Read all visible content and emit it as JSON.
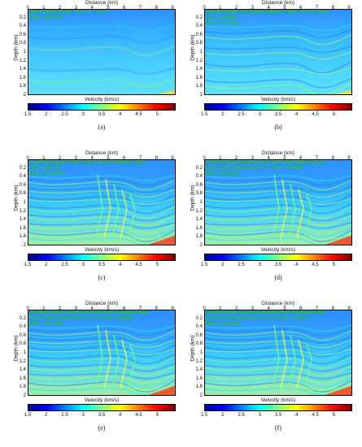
{
  "panels": [
    {
      "caption": "(a)",
      "xlabel": "Distance (km)",
      "ylabel": "Depth (km)",
      "cbar_label": "Velocity (km/s)",
      "annotation": [
        "Initial velocity model, S/N = 17.7312",
        "MSE = 69.3739"
      ]
    },
    {
      "caption": "(b)",
      "xlabel": "Distance (km)",
      "ylabel": "Depth (km)",
      "cbar_label": "Velocity (km/s)",
      "annotation": [
        "Inverted model using high-frequency data (≥ 10 Hz) only",
        "S/N = 16.9067",
        "MSE = 76.2820"
      ]
    },
    {
      "caption": "(c)",
      "xlabel": "Distance (km)",
      "ylabel": "Depth (km)",
      "cbar_label": "Velocity (km/s)",
      "annotation": [
        "Inverted velocity model using true low-frequency data",
        "S/N = 19.8743",
        "MSE = 54.2056"
      ]
    },
    {
      "caption": "(d)",
      "xlabel": "Distance (km)",
      "ylabel": "Depth (km)",
      "cbar_label": "Velocity (km/s)",
      "annotation": [
        "Inverted model using reconstructed low-frequency data",
        "by 3D CNN, kernel size 5 x 5, S/N = 18.6666",
        "MSE = 62.2913"
      ]
    },
    {
      "caption": "(e)",
      "xlabel": "Distance (km)",
      "ylabel": "Depth (km)",
      "cbar_label": "Velocity (km/s)",
      "annotation": [
        "Inverted model using reconstructed low-frequency data",
        "by 3D CNN, kernel size 3 x 3 x 3, S/N = 18.9580",
        "MSE = 60.2364"
      ]
    },
    {
      "caption": "(f)",
      "xlabel": "Distance (km)",
      "ylabel": "Depth (km)",
      "cbar_label": "Velocity (km/s)",
      "annotation": [
        "Inverted model using reconstructed low-frequency data",
        "by 3D CNN, kernel size 5 x 5 x 5, S/N = 19.6721",
        "MSE = 55.4819"
      ]
    }
  ],
  "x_ticks": [
    "0",
    "1",
    "2",
    "3",
    "4",
    "5",
    "6",
    "7",
    "8",
    "9"
  ],
  "y_ticks": [
    "0.2",
    "0.4",
    "0.6",
    "0.8",
    "1",
    "1.2",
    "1.4",
    "1.6",
    "1.8",
    "2"
  ],
  "cbar_ticks": [
    "1.5",
    "2",
    "2.5",
    "3",
    "3.5",
    "4",
    "4.5",
    "5"
  ],
  "colormap": [
    "#00008f",
    "#0000ff",
    "#0080ff",
    "#00ffff",
    "#80ff80",
    "#ffff00",
    "#ff8000",
    "#ff0000",
    "#800000"
  ],
  "chart_data": {
    "type": "heatmap",
    "xlabel": "Distance (km)",
    "ylabel": "Depth (km)",
    "xlim": [
      0,
      9.2
    ],
    "ylim": [
      0,
      2
    ],
    "colorbar": {
      "label": "Velocity (km/s)",
      "range": [
        1.5,
        5.5
      ],
      "ticks": [
        1.5,
        2,
        2.5,
        3,
        3.5,
        4,
        4.5,
        5
      ]
    }
  }
}
